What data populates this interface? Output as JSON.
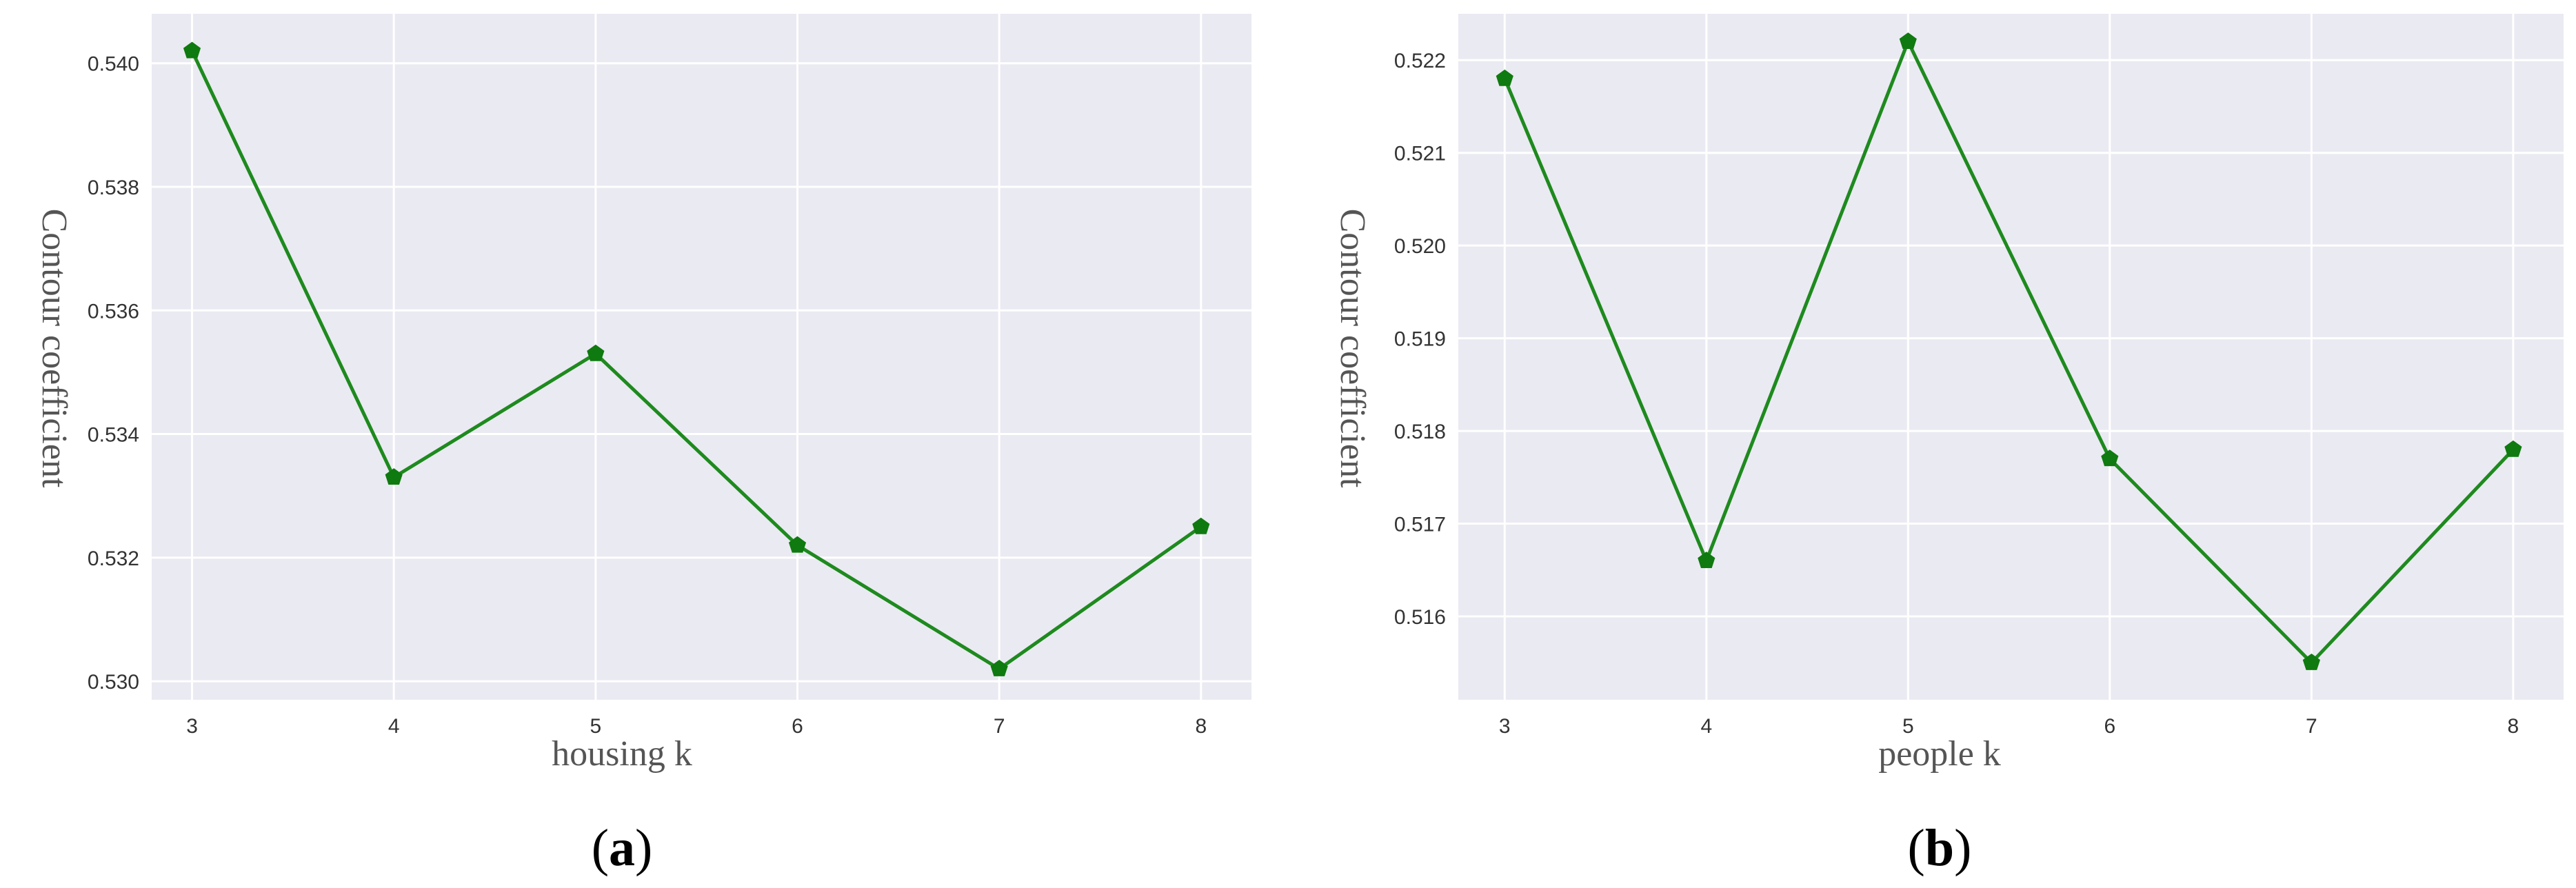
{
  "colors": {
    "line": "#1e8a1e",
    "marker": "#0f7a0f",
    "panel_bg": "#eaeaf2",
    "grid": "#ffffff"
  },
  "chart_data": [
    {
      "type": "line",
      "panel_label": "a",
      "xlabel": "housing k",
      "ylabel": "Contour coefficient",
      "x": [
        3,
        4,
        5,
        6,
        7,
        8
      ],
      "xticks": [
        "3",
        "4",
        "5",
        "6",
        "7",
        "8"
      ],
      "series": [
        {
          "values": [
            0.5402,
            0.5333,
            0.5353,
            0.5322,
            0.5302,
            0.5325
          ]
        }
      ],
      "yticks": [
        "0.530",
        "0.532",
        "0.534",
        "0.536",
        "0.538",
        "0.540"
      ],
      "ylim": [
        0.5297,
        0.5408
      ],
      "xlim": [
        2.8,
        8.25
      ],
      "grid": true,
      "marker": "pentagon"
    },
    {
      "type": "line",
      "panel_label": "b",
      "xlabel": "people k",
      "ylabel": "Contour coefficient",
      "x": [
        3,
        4,
        5,
        6,
        7,
        8
      ],
      "xticks": [
        "3",
        "4",
        "5",
        "6",
        "7",
        "8"
      ],
      "series": [
        {
          "values": [
            0.5218,
            0.5166,
            0.5222,
            0.5177,
            0.5155,
            0.5178
          ]
        }
      ],
      "yticks": [
        "0.516",
        "0.517",
        "0.518",
        "0.519",
        "0.520",
        "0.521",
        "0.522"
      ],
      "ylim": [
        0.5151,
        0.5225
      ],
      "xlim": [
        2.77,
        8.25
      ],
      "grid": true,
      "marker": "pentagon"
    }
  ]
}
